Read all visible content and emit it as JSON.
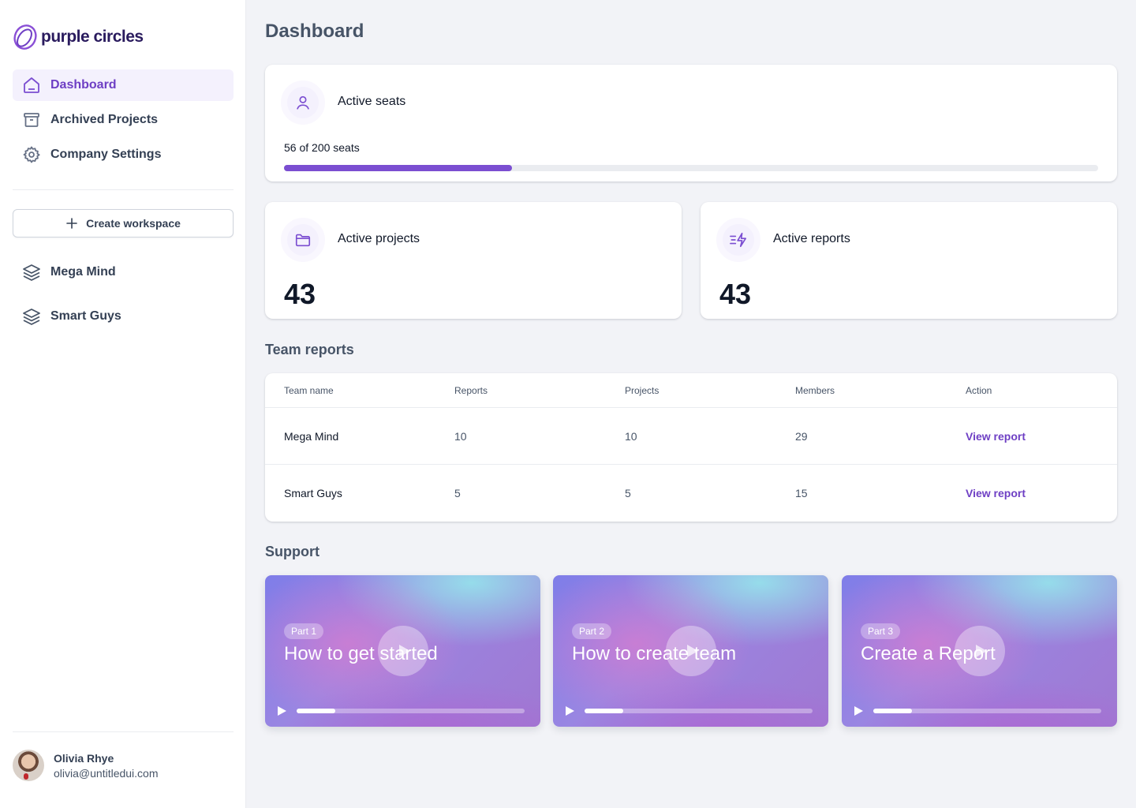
{
  "app": {
    "logo_text": "purple circles",
    "accent_color": "#7b4ed1"
  },
  "sidebar": {
    "nav": [
      {
        "label": "Dashboard",
        "icon": "home-icon",
        "active": true
      },
      {
        "label": "Archived Projects",
        "icon": "archive-icon",
        "active": false
      },
      {
        "label": "Company Settings",
        "icon": "gear-icon",
        "active": false
      }
    ],
    "create_workspace_label": "Create workspace",
    "workspaces": [
      {
        "label": "Mega Mind",
        "icon": "layers-icon"
      },
      {
        "label": "Smart Guys",
        "icon": "layers-icon"
      }
    ],
    "user": {
      "name": "Olivia Rhye",
      "email": "olivia@untitledui.com"
    }
  },
  "main": {
    "title": "Dashboard",
    "seats": {
      "label": "Active seats",
      "text": "56 of 200 seats",
      "used": 56,
      "total": 200
    },
    "projects": {
      "label": "Active projects",
      "value": "43"
    },
    "reports": {
      "label": "Active reports",
      "value": "43"
    },
    "team_reports": {
      "title": "Team reports",
      "columns": [
        "Team name",
        "Reports",
        "Projects",
        "Members",
        "Action"
      ],
      "rows": [
        {
          "name": "Mega Mind",
          "reports": "10",
          "projects": "10",
          "members": "29",
          "action": "View report"
        },
        {
          "name": "Smart Guys",
          "reports": "5",
          "projects": "5",
          "members": "15",
          "action": "View report"
        }
      ]
    },
    "support": {
      "title": "Support",
      "videos": [
        {
          "badge": "Part 1",
          "title": "How to get started",
          "progress": 0.17
        },
        {
          "badge": "Part 2",
          "title": "How to create team",
          "progress": 0.17
        },
        {
          "badge": "Part 3",
          "title": "Create a Report",
          "progress": 0.17
        }
      ]
    }
  }
}
